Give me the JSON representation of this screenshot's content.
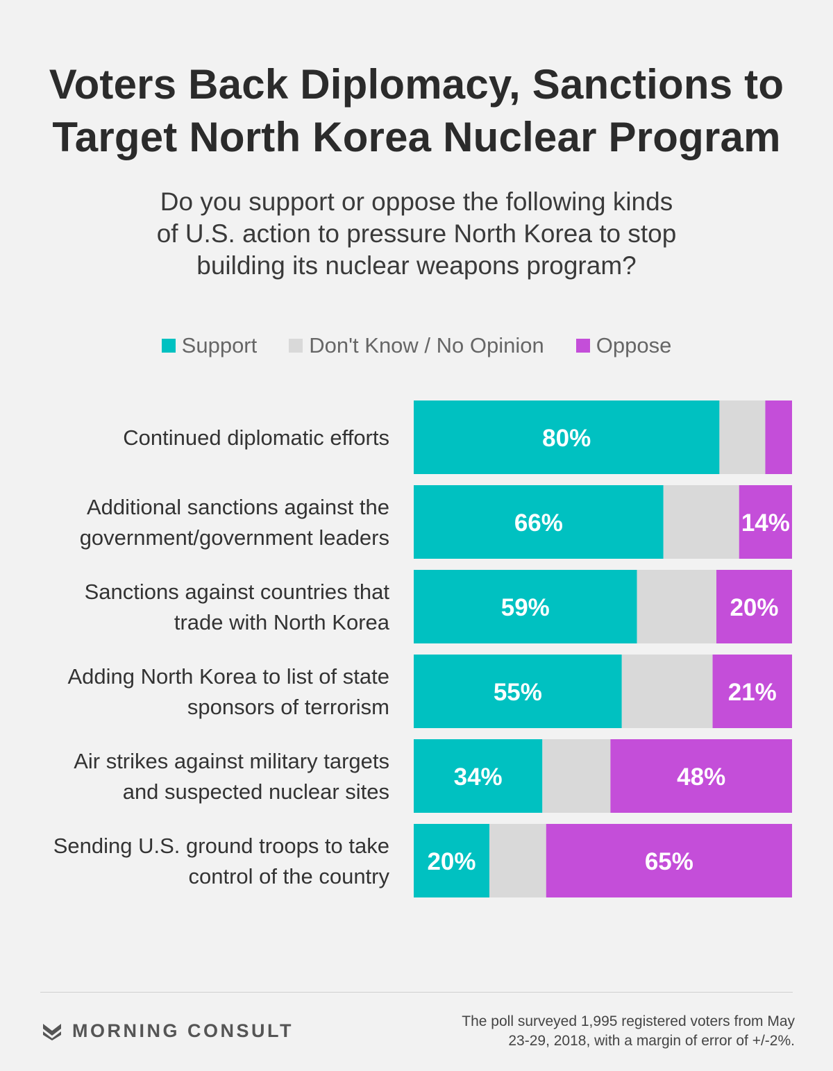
{
  "title_lines": [
    "Voters Back Diplomacy, Sanctions to",
    "Target North Korea Nuclear Program"
  ],
  "subtitle_lines": [
    "Do you support or oppose the following kinds",
    "of U.S. action to pressure North Korea to stop",
    "building its nuclear weapons program?"
  ],
  "legend": [
    {
      "label": "Support",
      "color": "#00c1c1"
    },
    {
      "label": "Don't Know / No Opinion",
      "color": "#d9d9d9"
    },
    {
      "label": "Oppose",
      "color": "#c44ed9"
    }
  ],
  "chart_data": {
    "type": "bar",
    "orientation": "horizontal",
    "stacked": true,
    "categories": [
      [
        "Continued diplomatic efforts"
      ],
      [
        "Additional sanctions against the",
        "government/government leaders"
      ],
      [
        "Sanctions against countries that",
        "trade with North Korea"
      ],
      [
        "Adding North Korea to list of state",
        "sponsors of terrorism"
      ],
      [
        "Air strikes against military targets",
        "and suspected nuclear sites"
      ],
      [
        "Sending U.S. ground troops to take",
        "control of the country"
      ]
    ],
    "series": [
      {
        "name": "Support",
        "color": "#00c1c1",
        "values": [
          80,
          66,
          59,
          55,
          34,
          20
        ],
        "labels": [
          "80%",
          "66%",
          "59%",
          "55%",
          "34%",
          "20%"
        ]
      },
      {
        "name": "Don't Know / No Opinion",
        "color": "#d9d9d9",
        "values": [
          12,
          20,
          21,
          24,
          18,
          15
        ],
        "labels": [
          "",
          "",
          "",
          "",
          "",
          ""
        ]
      },
      {
        "name": "Oppose",
        "color": "#c44ed9",
        "values": [
          7,
          14,
          20,
          21,
          48,
          65
        ],
        "labels": [
          "",
          "14%",
          "20%",
          "21%",
          "48%",
          "65%"
        ]
      }
    ],
    "xlim": [
      0,
      100
    ],
    "legend_position": "top"
  },
  "footer": {
    "brand": "MORNING CONSULT",
    "note_lines": [
      "The poll surveyed 1,995 registered voters from May",
      "23-29, 2018, with a margin of error of +/-2%."
    ]
  }
}
